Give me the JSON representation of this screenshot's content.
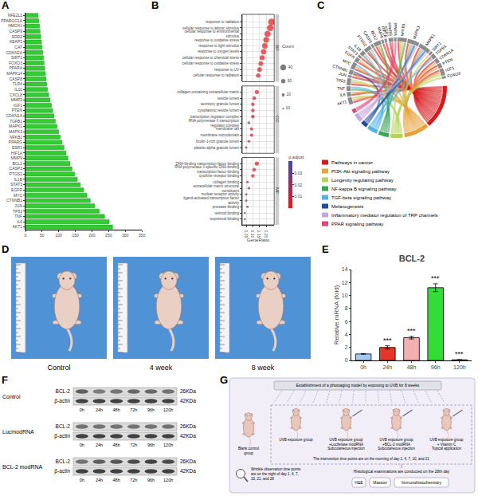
{
  "chart_data": [
    {
      "label": "A",
      "type": "bar",
      "orientation": "horizontal",
      "categories": [
        "NFE2L2",
        "PPARGC1A",
        "HMOX1",
        "CASP9",
        "SOD2",
        "KEAP1",
        "CAT",
        "CDKN2A",
        "SIRT1",
        "FOXO3",
        "PPARA",
        "MAPK14",
        "CASP8",
        "TLR4",
        "IL10",
        "CXCL8",
        "MMP2",
        "IGF1",
        "PTEN",
        "CDKN1A",
        "TGFB1",
        "MAPK1",
        "MAPK3",
        "NFKB1",
        "PPARG",
        "ESR1",
        "HIF1A",
        "MMP9",
        "BCL2",
        "CASP3",
        "PTGS2",
        "IL1B",
        "STAT3",
        "EGFR",
        "MYC",
        "CTNNB1",
        "JUN",
        "TP53",
        "TNF",
        "IL6",
        "AKT1"
      ],
      "values": [
        38,
        40,
        42,
        44,
        46,
        48,
        50,
        52,
        54,
        56,
        58,
        60,
        62,
        64,
        66,
        70,
        74,
        78,
        82,
        86,
        90,
        95,
        100,
        105,
        110,
        116,
        122,
        128,
        134,
        140,
        148,
        156,
        165,
        175,
        185,
        195,
        208,
        222,
        238,
        252,
        262
      ],
      "color": "#33cc33",
      "xlim": [
        0,
        350
      ],
      "xticks": [
        0,
        50,
        100,
        150,
        200,
        250,
        300,
        350
      ],
      "grid": false
    },
    {
      "label": "B",
      "type": "scatter",
      "xlabel": "GeneRatio",
      "xlim": [
        0.02,
        0.26
      ],
      "xticks": [
        0.05,
        {
          "value": 0.1,
          "label": "0.10"
        },
        0.15,
        {
          "value": 0.2,
          "label": "0.20"
        }
      ],
      "grid": true,
      "facets": [
        {
          "name": "BP",
          "categories": [
            "response to radiation",
            "cellular response to abiotic stimulus",
            "cellular response to environmental stimulus",
            "response to oxidative stress",
            "response to light stimulus",
            "response to oxygen levels",
            "cellular response to chemical stress",
            "cellular response to oxidative stress",
            "response to UV",
            "cellular response to radiation"
          ],
          "values": [
            0.24,
            0.23,
            0.21,
            0.2,
            0.19,
            0.18,
            0.17,
            0.16,
            0.15,
            0.14
          ],
          "count": [
            41,
            39,
            36,
            34,
            32,
            31,
            29,
            27,
            26,
            24
          ],
          "p_adjust": [
            0.0001,
            0.0001,
            0.0002,
            0.0002,
            0.0003,
            0.0003,
            0.0004,
            0.0004,
            0.0005,
            0.0005
          ]
        },
        {
          "name": "CC",
          "categories": [
            "collagen-containing extracellular matrix",
            "vesicle lumen",
            "secretory granule lumen",
            "cytoplasmic vesicle lumen",
            "transcription regulator complex",
            "RNA polymerase II transcription regulator complex",
            "membrane raft",
            "membrane microdomain",
            "ficolin-1-rich granule lumen",
            "platelet alpha granule lumen"
          ],
          "values": [
            0.13,
            0.11,
            0.1,
            0.1,
            0.1,
            0.07,
            0.09,
            0.09,
            0.07,
            0.05
          ],
          "count": [
            22,
            19,
            17,
            17,
            17,
            12,
            15,
            15,
            12,
            9
          ],
          "p_adjust": [
            0.002,
            0.004,
            0.006,
            0.006,
            0.008,
            0.012,
            0.006,
            0.006,
            0.01,
            0.02
          ]
        },
        {
          "name": "MF",
          "categories": [
            "DNA-binding transcription factor binding",
            "RNA polymerase II-specific DNA-binding transcription factor binding",
            "cytokine receptor binding",
            "collagen binding",
            "extracellular matrix structural constituent",
            "nuclear receptor activity",
            "ligand-activated transcription factor activity",
            "protease binding",
            "retinoid binding",
            "isoprenoid binding"
          ],
          "values": [
            0.13,
            0.11,
            0.1,
            0.06,
            0.07,
            0.05,
            0.05,
            0.06,
            0.04,
            0.04
          ],
          "count": [
            22,
            19,
            17,
            10,
            12,
            9,
            9,
            10,
            7,
            7
          ],
          "p_adjust": [
            0.0005,
            0.001,
            0.003,
            0.015,
            0.02,
            0.018,
            0.018,
            0.025,
            0.03,
            0.03
          ]
        }
      ],
      "count_legend": {
        "title": "Count",
        "values": [
          10,
          20,
          30,
          40
        ]
      },
      "color_bar": {
        "title": "p.adjust",
        "range": [
          0,
          0.04
        ],
        "ticks": [
          0.01,
          0.02,
          0.03
        ],
        "colors": [
          "#e41a1c",
          "#3c4ea0"
        ]
      }
    },
    {
      "label": "E",
      "type": "bar",
      "title": "BCL-2",
      "ylabel": "Relative mRNA (fold)",
      "categories": [
        "0h",
        "24h",
        "48h",
        "96h",
        "120h"
      ],
      "values": [
        1,
        2.0,
        3.5,
        11.2,
        0.1
      ],
      "error": [
        0.05,
        0.25,
        0.2,
        0.6,
        0.03
      ],
      "colors": [
        "#a6c8f0",
        "#e8352b",
        "#f4b0b0",
        "#33dd33",
        "#1f4fd8"
      ],
      "annotations": [
        null,
        "***",
        "***",
        "***",
        "***"
      ],
      "ylim": [
        0,
        14
      ],
      "yticks": [
        0,
        2,
        4,
        6,
        8,
        10,
        12,
        14
      ],
      "grid": false
    }
  ],
  "chord_diagram": {
    "label": "C",
    "genes": [
      "AKT1",
      "IL6",
      "TNF",
      "TP53",
      "JUN",
      "CTNNB1",
      "MYC",
      "EGFR",
      "STAT3",
      "IL1B",
      "PTGS2",
      "CASP3",
      "BCL2",
      "MMP9",
      "HIF1A",
      "ESR1",
      "PPARG",
      "PPARA",
      "NFKB1",
      "MAPK3",
      "MAPK1",
      "SIRT1",
      "TGFB1",
      "CDKN1A",
      "PTEN",
      "IGF1",
      "FOXO3"
    ],
    "pathways": [
      {
        "name": "Pathways in cancer",
        "color": "#d7191c",
        "genes": [
          "AKT1",
          "IL6",
          "TP53",
          "JUN",
          "CTNNB1",
          "MYC",
          "EGFR",
          "STAT3",
          "PTGS2",
          "CASP3",
          "BCL2",
          "MMP9",
          "HIF1A",
          "PPARG",
          "NFKB1",
          "MAPK3",
          "MAPK1",
          "TGFB1",
          "CDKN1A",
          "PTEN",
          "IGF1"
        ]
      },
      {
        "name": "PI3K-Akt signaling pathway",
        "color": "#e8a23a",
        "genes": [
          "AKT1",
          "IL6",
          "TP53",
          "MYC",
          "EGFR",
          "BCL2",
          "NFKB1",
          "MAPK3",
          "MAPK1",
          "CDKN1A",
          "PTEN",
          "IGF1"
        ]
      },
      {
        "name": "Longevity regulating pathway",
        "color": "#b5d35a",
        "genes": [
          "AKT1",
          "TP53",
          "SIRT1",
          "IGF1",
          "FOXO3",
          "NFKB1"
        ]
      },
      {
        "name": "NF-kappa B signaling pathway",
        "color": "#3aa655",
        "genes": [
          "TNF",
          "IL1B",
          "PTGS2",
          "BCL2",
          "NFKB1"
        ]
      },
      {
        "name": "TGF-beta signaling pathway",
        "color": "#4fb3e8",
        "genes": [
          "TNF",
          "MYC",
          "TGFB1",
          "MAPK3",
          "MAPK1"
        ]
      },
      {
        "name": "Melanogenesis",
        "color": "#1f4e9e",
        "genes": [
          "CTNNB1",
          "MAPK3",
          "MAPK1"
        ]
      },
      {
        "name": "Inflammatory mediator regulation of TRP channels",
        "color": "#c6a8e0",
        "genes": [
          "IL1B",
          "PTGS2",
          "MAPK3",
          "MAPK1"
        ]
      },
      {
        "name": "PPAR signaling pathway",
        "color": "#e7407a",
        "genes": [
          "PPARG",
          "PPARA"
        ]
      }
    ]
  },
  "photos": {
    "label": "D",
    "captions": [
      "Control",
      "4 week",
      "8 week"
    ]
  },
  "western_blot": {
    "label": "F",
    "lanes": [
      "0h",
      "24h",
      "48h",
      "72h",
      "96h",
      "120h"
    ],
    "groups": [
      {
        "name": "Control",
        "rows": [
          {
            "protein": "BCL-2",
            "size": "26KDa",
            "band_intensity": [
              0.7,
              0.55,
              0.6,
              0.65,
              0.65,
              0.6
            ]
          },
          {
            "protein": "β-actin",
            "size": "42KDa",
            "band_intensity": [
              0.85,
              0.85,
              0.85,
              0.85,
              0.85,
              0.85
            ]
          }
        ]
      },
      {
        "name": "LucmodRNA",
        "rows": [
          {
            "protein": "BCL-2",
            "size": "26KDa",
            "band_intensity": [
              0.6,
              0.6,
              0.6,
              0.6,
              0.6,
              0.6
            ]
          },
          {
            "protein": "β-actin",
            "size": "42KDa",
            "band_intensity": [
              0.85,
              0.85,
              0.85,
              0.85,
              0.85,
              0.85
            ]
          }
        ]
      },
      {
        "name": "BCL-2 modRNA",
        "rows": [
          {
            "protein": "BCL-2",
            "size": "26KDa",
            "band_intensity": [
              0.6,
              0.7,
              0.75,
              0.8,
              0.85,
              0.8
            ]
          },
          {
            "protein": "β-actin",
            "size": "42KDa",
            "band_intensity": [
              0.85,
              0.85,
              0.85,
              0.85,
              0.85,
              0.85
            ]
          }
        ]
      }
    ]
  },
  "schematic": {
    "label": "G",
    "model": "Establishment of a photoaging model by exposing to UVB for 8 weeks",
    "control_group": "Blank control group",
    "groups": [
      [
        "UVB exposure group"
      ],
      [
        "UVB exposure group",
        "+Luciferase modRNA",
        "Subcutaneous injection"
      ],
      [
        "UVB exposure group",
        "+BCL-2 modRNA",
        "Subcutaneous injection"
      ],
      [
        "UVB exposure group",
        "+ Vitamin C",
        "Topical application"
      ]
    ],
    "intervention": "The intervention time points are on the morning of day 1, 4, 7, 10, and 21",
    "histology": "Histological examinations are conducted on the 28th day",
    "stains": [
      "H&E",
      "Masson",
      "Immunohistochemistry"
    ],
    "wrinkle": "Wrinkle observation time points are on the night of day 1, 4, 7, 10, 21, and 28"
  }
}
